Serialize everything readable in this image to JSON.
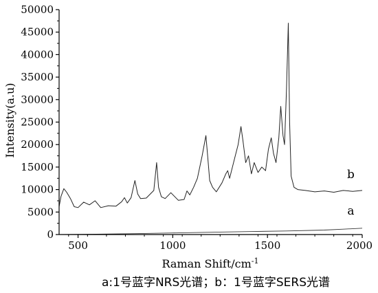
{
  "chart_data": {
    "type": "line",
    "xlabel": "Raman Shift/cm",
    "xlabel_sup": "-1",
    "ylabel": "Intensity(a.u)",
    "xlim": [
      400,
      2000
    ],
    "ylim": [
      0,
      50000
    ],
    "xticks": [
      "500",
      "1000",
      "1500",
      "2000"
    ],
    "yticks": [
      "0",
      "5000",
      "10000",
      "15000",
      "20000",
      "25000",
      "30000",
      "35000",
      "40000",
      "45000",
      "50000"
    ],
    "series": [
      {
        "name": "b",
        "x": [
          400,
          410,
          425,
          440,
          460,
          480,
          500,
          530,
          560,
          590,
          620,
          660,
          700,
          730,
          745,
          760,
          780,
          800,
          815,
          830,
          860,
          900,
          915,
          925,
          940,
          960,
          990,
          1030,
          1060,
          1075,
          1090,
          1110,
          1130,
          1155,
          1175,
          1185,
          1195,
          1210,
          1230,
          1260,
          1280,
          1290,
          1300,
          1315,
          1330,
          1345,
          1360,
          1370,
          1385,
          1400,
          1415,
          1430,
          1450,
          1470,
          1490,
          1505,
          1520,
          1532,
          1545,
          1560,
          1570,
          1582,
          1590,
          1600,
          1610,
          1617,
          1625,
          1640,
          1660,
          1700,
          1750,
          1800,
          1850,
          1900,
          1950,
          2000
        ],
        "y": [
          6200,
          8500,
          10200,
          9400,
          8000,
          6200,
          6000,
          7200,
          6600,
          7500,
          6000,
          6400,
          6300,
          7300,
          8200,
          7000,
          8200,
          12000,
          9000,
          8000,
          8100,
          9800,
          16000,
          10500,
          8400,
          8000,
          9300,
          7600,
          7800,
          9700,
          8800,
          10500,
          12500,
          17500,
          22000,
          17000,
          12000,
          10500,
          9500,
          11500,
          13500,
          14200,
          12500,
          15000,
          17500,
          20000,
          24000,
          21000,
          16000,
          17500,
          13500,
          16000,
          13800,
          15000,
          14200,
          19000,
          21500,
          18000,
          16000,
          21500,
          28500,
          22000,
          20000,
          32000,
          47000,
          25000,
          13000,
          10500,
          10000,
          9800,
          9500,
          9700,
          9400,
          9800,
          9600,
          9800
        ]
      },
      {
        "name": "a",
        "x": [
          400,
          600,
          800,
          1000,
          1200,
          1400,
          1600,
          1800,
          1900,
          2000
        ],
        "y": [
          0,
          80,
          200,
          350,
          500,
          650,
          800,
          1000,
          1200,
          1400
        ]
      }
    ]
  },
  "caption": "a:1号蓝字NRS光谱；b：1号蓝字SERS光谱"
}
